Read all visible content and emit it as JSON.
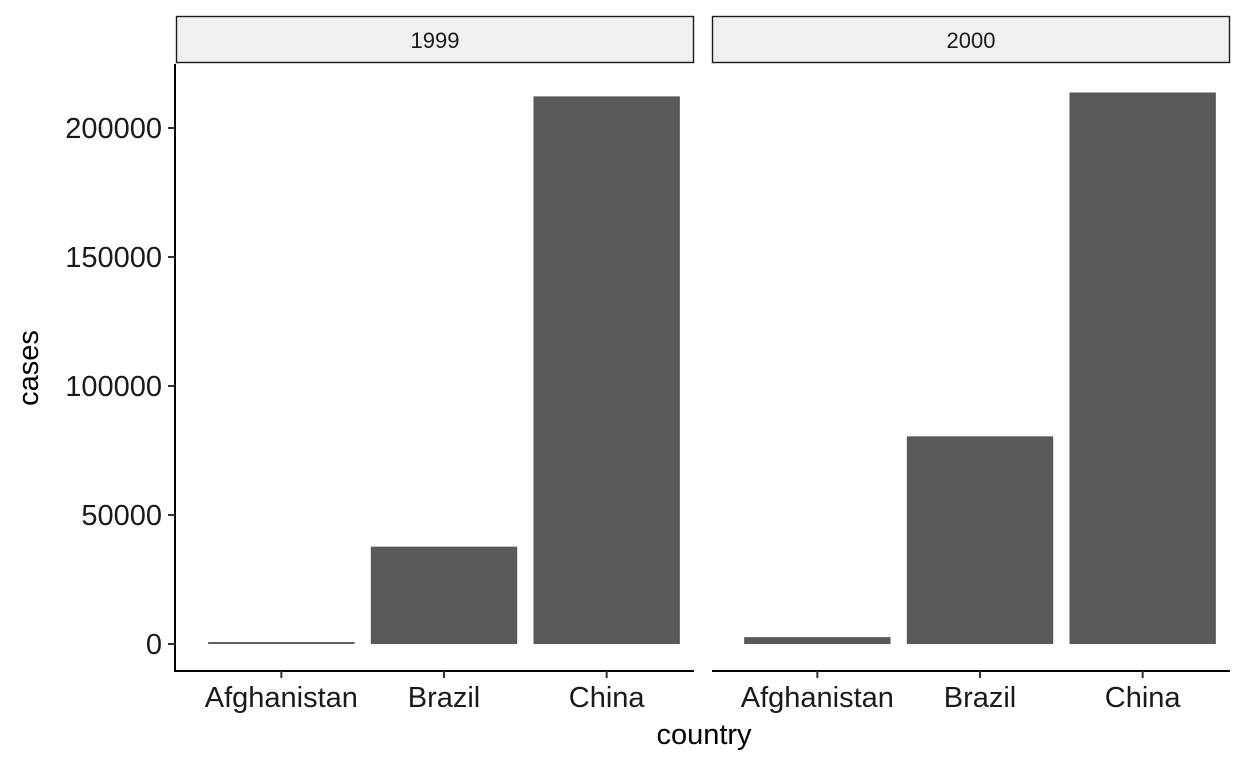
{
  "chart_data": {
    "type": "bar",
    "xlabel": "country",
    "ylabel": "cases",
    "ylim": [
      0,
      220000
    ],
    "y_ticks": [
      "0",
      "50000",
      "100000",
      "150000",
      "200000"
    ],
    "categories": [
      "Afghanistan",
      "Brazil",
      "China"
    ],
    "facets": [
      {
        "label": "1999",
        "values": [
          745,
          37737,
          212258
        ]
      },
      {
        "label": "2000",
        "values": [
          2666,
          80488,
          213766
        ]
      }
    ],
    "bar_color": "#595959",
    "grid": false,
    "legend": "none"
  }
}
